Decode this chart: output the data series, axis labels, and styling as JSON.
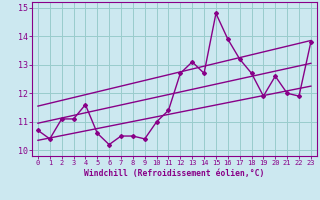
{
  "title": "",
  "xlabel": "Windchill (Refroidissement éolien,°C)",
  "ylabel": "",
  "bg_color": "#cce8f0",
  "line_color": "#880088",
  "grid_color": "#99cccc",
  "hours": [
    0,
    1,
    2,
    3,
    4,
    5,
    6,
    7,
    8,
    9,
    10,
    11,
    12,
    13,
    14,
    15,
    16,
    17,
    18,
    19,
    20,
    21,
    22,
    23
  ],
  "windchill": [
    10.7,
    10.4,
    11.1,
    11.1,
    11.6,
    10.6,
    10.2,
    10.5,
    10.5,
    10.4,
    11.0,
    11.4,
    12.7,
    13.1,
    12.7,
    14.8,
    13.9,
    13.2,
    12.7,
    11.9,
    12.6,
    12.0,
    11.9,
    13.8
  ],
  "reg_line": [
    [
      0,
      10.95
    ],
    [
      23,
      13.05
    ]
  ],
  "upper_line": [
    [
      0,
      11.55
    ],
    [
      23,
      13.85
    ]
  ],
  "lower_line": [
    [
      0,
      10.35
    ],
    [
      23,
      12.25
    ]
  ],
  "ylim": [
    9.8,
    15.2
  ],
  "xlim": [
    -0.5,
    23.5
  ],
  "yticks": [
    10,
    11,
    12,
    13,
    14,
    15
  ],
  "xticks": [
    0,
    1,
    2,
    3,
    4,
    5,
    6,
    7,
    8,
    9,
    10,
    11,
    12,
    13,
    14,
    15,
    16,
    17,
    18,
    19,
    20,
    21,
    22,
    23
  ]
}
